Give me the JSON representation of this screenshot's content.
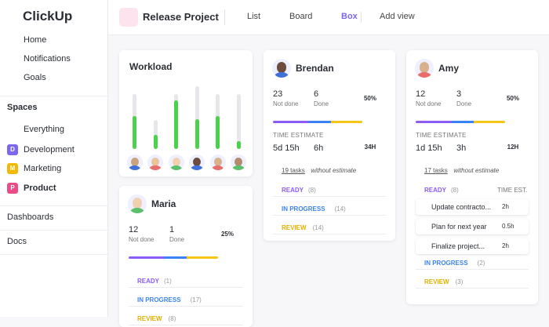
{
  "sidebar": {
    "logo": "ClickUp",
    "nav": [
      "Home",
      "Notifications",
      "Goals"
    ],
    "spaces_title": "Spaces",
    "spaces": [
      {
        "label": "Everything"
      },
      {
        "badge": "D",
        "label": "Development"
      },
      {
        "badge": "M",
        "label": "Marketing"
      },
      {
        "badge": "P",
        "label": "Product"
      }
    ],
    "sections": [
      "Dashboards",
      "Docs"
    ]
  },
  "header": {
    "title": "Release Project",
    "views": [
      "List",
      "Board",
      "Box"
    ],
    "add_view": "Add view"
  },
  "workload": {
    "title": "Workload",
    "bars": [
      {
        "total": 70,
        "done": 42
      },
      {
        "total": 37,
        "done": 18
      },
      {
        "total": 70,
        "done": 62
      },
      {
        "total": 80,
        "done": 38
      },
      {
        "total": 70,
        "done": 42
      },
      {
        "total": 70,
        "done": 10
      }
    ]
  },
  "people": [
    {
      "name": "Maria",
      "stats": [
        {
          "value": "12",
          "label": "Not done"
        },
        {
          "value": "1",
          "label": "Done"
        }
      ],
      "percent": {
        "value": 25,
        "label": "25%"
      },
      "groups": [
        {
          "name": "READY",
          "count": "(1)"
        },
        {
          "name": "IN PROGRESS",
          "count": "(17)"
        },
        {
          "name": "REVIEW",
          "count": "(8)"
        }
      ]
    },
    {
      "name": "Brendan",
      "stats": [
        {
          "value": "23",
          "label": "Not done"
        },
        {
          "value": "6",
          "label": "Done"
        }
      ],
      "percent": {
        "value": 50,
        "label": "50%"
      },
      "time": {
        "title": "TIME ESTIMATE",
        "stats": [
          "5d 15h",
          "6h"
        ],
        "total": "34H",
        "link": "19 tasks",
        "note": "without estimate"
      },
      "groups": [
        {
          "name": "READY",
          "count": "(8)"
        },
        {
          "name": "IN PROGRESS",
          "count": "(14)"
        },
        {
          "name": "REVIEW",
          "count": "(14)"
        }
      ]
    },
    {
      "name": "Amy",
      "stats": [
        {
          "value": "12",
          "label": "Not done"
        },
        {
          "value": "3",
          "label": "Done"
        }
      ],
      "percent": {
        "value": 50,
        "label": "50%"
      },
      "time": {
        "title": "TIME ESTIMATE",
        "stats": [
          "1d 15h",
          "3h"
        ],
        "total": "12H",
        "link": "17 tasks",
        "note": "without estimate"
      },
      "groups": [
        {
          "name": "READY",
          "count": "(8)",
          "column": "TIME EST.",
          "tasks": [
            {
              "name": "Update contracto...",
              "estimate": "2h"
            },
            {
              "name": "Plan for next year",
              "estimate": "0.5h"
            },
            {
              "name": "Finalize project...",
              "estimate": "2h"
            }
          ]
        },
        {
          "name": "IN PROGRESS",
          "count": "(2)"
        },
        {
          "name": "REVIEW",
          "count": "(3)"
        }
      ]
    }
  ]
}
